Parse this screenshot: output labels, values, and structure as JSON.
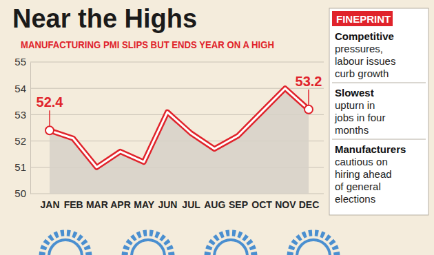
{
  "chart_data": {
    "type": "line",
    "title": "Near the Highs",
    "subtitle": "MANUFACTURING PMI SLIPS BUT ENDS YEAR ON A HIGH",
    "categories": [
      "JAN",
      "FEB",
      "MAR",
      "APR",
      "MAY",
      "JUN",
      "JUL",
      "AUG",
      "SEP",
      "OCT",
      "NOV",
      "DEC"
    ],
    "values": [
      52.4,
      52.1,
      51.0,
      51.6,
      51.2,
      53.1,
      52.3,
      51.7,
      52.2,
      53.1,
      54.0,
      53.2
    ],
    "value_labels": [
      "52.4",
      null,
      null,
      null,
      null,
      null,
      null,
      null,
      null,
      null,
      null,
      "53.2"
    ],
    "data_labels": true,
    "color": "#e0232b",
    "ylim": [
      50,
      55
    ],
    "yticks": [
      50,
      51,
      52,
      53,
      54,
      55
    ],
    "grid": true,
    "annotations": {
      "title": "FINEPRINT",
      "items": [
        {
          "heading": "Competitive",
          "lines": [
            "pressures,",
            "labour issues",
            "curb growth"
          ]
        },
        {
          "heading": "Slowest",
          "lines": [
            "upturn in",
            "jobs in four",
            "months"
          ]
        },
        {
          "heading": "Manufacturers",
          "lines": [
            "cautious on",
            "hiring ahead",
            "of general",
            "elections"
          ]
        }
      ]
    }
  }
}
